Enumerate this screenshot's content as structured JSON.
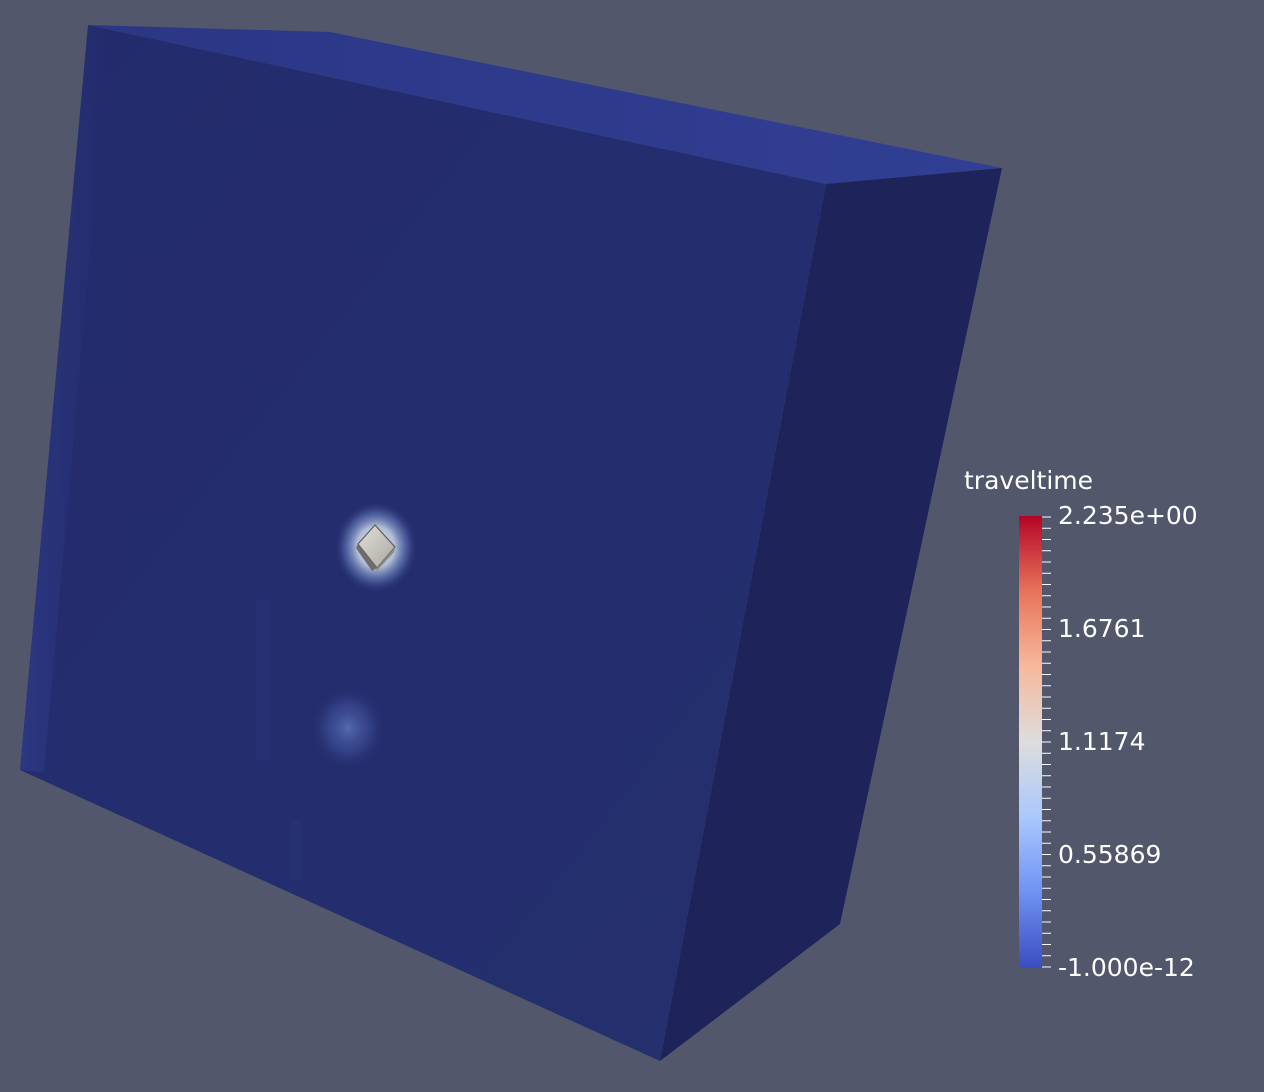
{
  "viewport": {
    "background": "#52576c"
  },
  "scene": {
    "object": "box-volume",
    "front_face_color": "#242d6e",
    "top_face_color": "#2d3a8c",
    "right_face_color": "#1e2459",
    "source_marker_color": "#c9c7c0",
    "glow_color": "#d9e4f2"
  },
  "legend": {
    "title": "traveltime",
    "colormap": "cool-to-warm",
    "colors": [
      "#3b4cc0",
      "#6f92f3",
      "#aac7fd",
      "#dddddd",
      "#f7b89c",
      "#e7745b",
      "#b40426"
    ],
    "min": -1e-12,
    "max": 2.235,
    "labels": [
      "2.235e+00",
      "1.6761",
      "1.1174",
      "0.55869",
      "-1.000e-12"
    ],
    "label_values": [
      2.235,
      1.6761,
      1.1174,
      0.55869,
      -1e-12
    ],
    "minor_tick_count": 41
  }
}
